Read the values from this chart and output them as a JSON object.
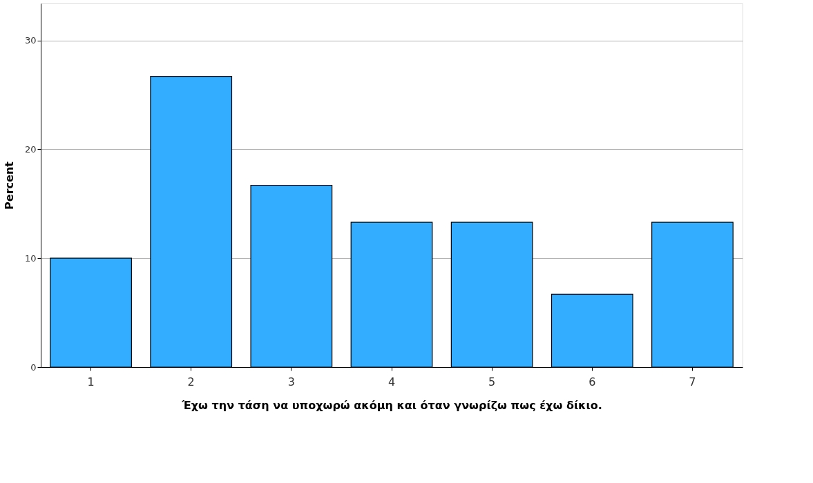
{
  "chart_data": {
    "type": "bar",
    "xlabel": "Έχω την τάση να υποχωρώ ακόμη και όταν γνωρίζω πως έχω δίκιο.",
    "ylabel": "Percent",
    "categories": [
      "1",
      "2",
      "3",
      "4",
      "5",
      "6",
      "7"
    ],
    "values": [
      10.0,
      26.7,
      16.7,
      13.3,
      13.3,
      6.7,
      13.3
    ],
    "color": "#33adff",
    "ylim": [
      0,
      33.4
    ],
    "yticks": [
      0,
      10,
      20,
      30
    ],
    "grid": "y"
  }
}
